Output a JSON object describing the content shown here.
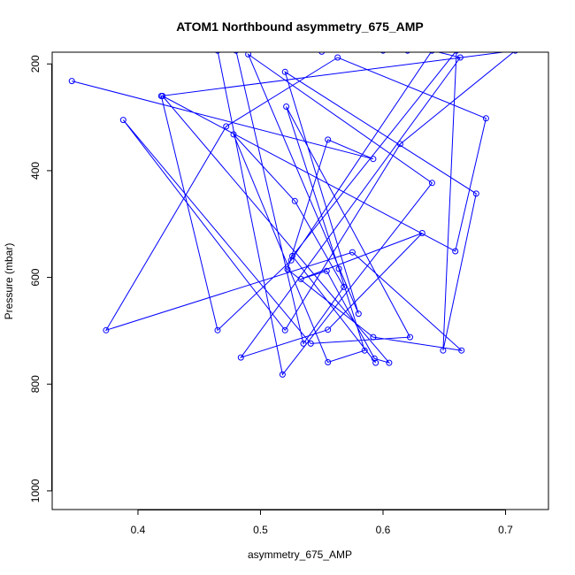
{
  "chart_data": {
    "type": "line",
    "title": "ATOM1 Northbound asymmetry_675_AMP",
    "xlabel": "asymmetry_675_AMP",
    "ylabel": "Pressure (mbar)",
    "xlim": [
      0.33,
      0.735
    ],
    "ylim": [
      1035,
      178
    ],
    "y_reversed": true,
    "xticks": [
      0.4,
      0.5,
      0.6,
      0.7
    ],
    "xtick_labels": [
      "0.4",
      "0.5",
      "0.6",
      "0.7"
    ],
    "yticks": [
      200,
      400,
      600,
      800,
      1000
    ],
    "ytick_labels": [
      "200",
      "400",
      "600",
      "800",
      "1000"
    ],
    "grid": false,
    "legend": "none",
    "series": [
      {
        "color": "#0000ff",
        "marker": "open-circle",
        "x": [
          0.346,
          0.592,
          0.555,
          0.522,
          0.592,
          0.664,
          0.575,
          0.374,
          0.472,
          0.563,
          0.684,
          0.659,
          0.42,
          0.605,
          0.593,
          0.554,
          0.533,
          0.632,
          0.555,
          0.484,
          0.663,
          0.64,
          0.525,
          0.465,
          0.419,
          0.708,
          0.614,
          0.52,
          0.388,
          0.541,
          0.622,
          0.521,
          0.564,
          0.585,
          0.555,
          0.478,
          0.528,
          0.568,
          0.535,
          0.48,
          0.6,
          0.55,
          0.62,
          0.465,
          0.518,
          0.64,
          0.49,
          0.58,
          0.52,
          0.676,
          0.649,
          0.66,
          0.526,
          0.594
        ],
        "y": [
          232,
          378,
          342,
          585,
          712,
          737,
          553,
          699,
          317,
          188,
          302,
          551,
          260,
          760,
          752,
          588,
          603,
          517,
          698,
          750,
          188,
          175,
          568,
          699,
          260,
          175,
          350,
          699,
          305,
          724,
          712,
          280,
          584,
          737,
          759,
          332,
          457,
          618,
          724,
          175,
          175,
          177,
          175,
          175,
          782,
          423,
          182,
          668,
          215,
          443,
          737,
          175,
          560,
          760
        ]
      }
    ]
  }
}
